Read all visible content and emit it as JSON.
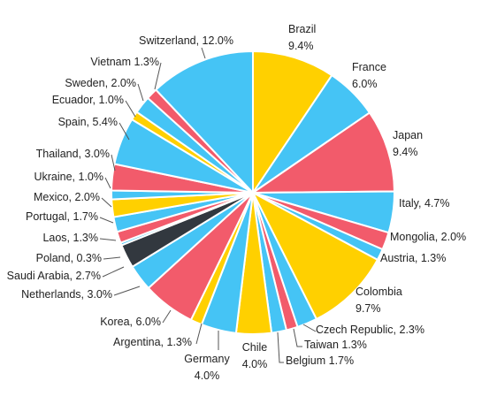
{
  "chart_data": {
    "type": "pie",
    "title": "",
    "slices": [
      {
        "label": "Brazil",
        "value_label": "9.4%",
        "value": 9.4,
        "color": "#FFD000"
      },
      {
        "label": "France",
        "value_label": "6.0%",
        "value": 6.0,
        "color": "#45C4F5"
      },
      {
        "label": "Japan",
        "value_label": "9.4%",
        "value": 9.4,
        "color": "#F25B6B"
      },
      {
        "label": "Italy",
        "value_label": "4.7%",
        "value": 4.7,
        "color": "#45C4F5"
      },
      {
        "label": "Mongolia",
        "value_label": "2.0%",
        "value": 2.0,
        "color": "#F25B6B"
      },
      {
        "label": "Austria",
        "value_label": "1.3%",
        "value": 1.3,
        "color": "#45C4F5"
      },
      {
        "label": "Colombia",
        "value_label": "9.7%",
        "value": 9.7,
        "color": "#FFD000"
      },
      {
        "label": "Czech Republic",
        "value_label": "2.3%",
        "value": 2.3,
        "color": "#45C4F5"
      },
      {
        "label": "Taiwan",
        "value_label": "1.3%",
        "value": 1.3,
        "color": "#F25B6B"
      },
      {
        "label": "Belgium",
        "value_label": "1.7%",
        "value": 1.7,
        "color": "#45C4F5"
      },
      {
        "label": "Chile",
        "value_label": "4.0%",
        "value": 4.0,
        "color": "#FFD000"
      },
      {
        "label": "Germany",
        "value_label": "4.0%",
        "value": 4.0,
        "color": "#45C4F5"
      },
      {
        "label": "Argentina",
        "value_label": "1.3%",
        "value": 1.3,
        "color": "#FFD000"
      },
      {
        "label": "Korea",
        "value_label": "6.0%",
        "value": 6.0,
        "color": "#F25B6B"
      },
      {
        "label": "Netherlands",
        "value_label": "3.0%",
        "value": 3.0,
        "color": "#45C4F5"
      },
      {
        "label": "Saudi Arabia",
        "value_label": "2.7%",
        "value": 2.7,
        "color": "#32383F"
      },
      {
        "label": "Poland",
        "value_label": "0.3%",
        "value": 0.3,
        "color": "#45C4F5"
      },
      {
        "label": "Laos",
        "value_label": "1.3%",
        "value": 1.3,
        "color": "#F25B6B"
      },
      {
        "label": "Portugal",
        "value_label": "1.7%",
        "value": 1.7,
        "color": "#45C4F5"
      },
      {
        "label": "Mexico",
        "value_label": "2.0%",
        "value": 2.0,
        "color": "#FFD000"
      },
      {
        "label": "Ukraine",
        "value_label": "1.0%",
        "value": 1.0,
        "color": "#45C4F5"
      },
      {
        "label": "Thailand",
        "value_label": "3.0%",
        "value": 3.0,
        "color": "#F25B6B"
      },
      {
        "label": "Spain",
        "value_label": "5.4%",
        "value": 5.4,
        "color": "#45C4F5"
      },
      {
        "label": "Ecuador",
        "value_label": "1.0%",
        "value": 1.0,
        "color": "#FFD000"
      },
      {
        "label": "Sweden",
        "value_label": "2.0%",
        "value": 2.0,
        "color": "#45C4F5"
      },
      {
        "label": "Vietnam",
        "value_label": "1.3%",
        "value": 1.3,
        "color": "#F25B6B"
      },
      {
        "label": "Switzerland",
        "value_label": "12.0%",
        "value": 12.0,
        "color": "#45C4F5"
      }
    ],
    "legend": "none",
    "data_labels": "outside with leader lines"
  }
}
